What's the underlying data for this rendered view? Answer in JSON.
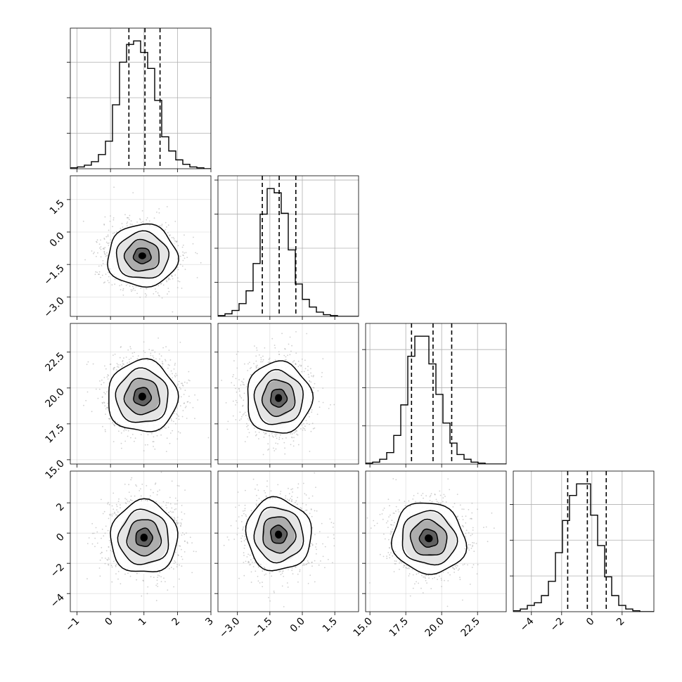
{
  "chart_data": {
    "type": "corner",
    "ndim": 4,
    "grid": true,
    "parameters": [
      {
        "range": [
          -1.2,
          3.0
        ],
        "ticks": [
          -1,
          0,
          1,
          2,
          3
        ],
        "tick_labels": [
          "−1",
          "0",
          "1",
          "2",
          "3"
        ]
      },
      {
        "range": [
          -3.9,
          2.6
        ],
        "ticks": [
          -3.0,
          -1.5,
          0.0,
          1.5
        ],
        "tick_labels": [
          "−3.0",
          "−1.5",
          "0.0",
          "1.5"
        ]
      },
      {
        "range": [
          14.7,
          24.5
        ],
        "ticks": [
          15.0,
          17.5,
          20.0,
          22.5
        ],
        "tick_labels": [
          "15.0",
          "17.5",
          "20.0",
          "22.5"
        ]
      },
      {
        "range": [
          -5.2,
          4.1
        ],
        "ticks": [
          -4,
          -2,
          0,
          2
        ],
        "tick_labels": [
          "−4",
          "−2",
          "0",
          "2"
        ]
      }
    ],
    "quantiles": [
      [
        0.55,
        1.03,
        1.48
      ],
      [
        -1.85,
        -1.07,
        -0.3
      ],
      [
        17.9,
        19.4,
        20.7
      ],
      [
        -1.6,
        -0.3,
        0.95
      ]
    ],
    "histograms": [
      {
        "counts": [
          1,
          2,
          4,
          8,
          16,
          31,
          72,
          120,
          140,
          144,
          131,
          113,
          77,
          36,
          20,
          10,
          5,
          2,
          1,
          0
        ]
      },
      {
        "counts": [
          1,
          3,
          7,
          15,
          30,
          62,
          120,
          150,
          145,
          121,
          78,
          38,
          20,
          11,
          5,
          2,
          1,
          0,
          0,
          0
        ]
      },
      {
        "counts": [
          1,
          2,
          5,
          12,
          30,
          62,
          113,
          134,
          134,
          105,
          73,
          43,
          22,
          10,
          5,
          2,
          1,
          0,
          0,
          0
        ]
      },
      {
        "counts": [
          1,
          3,
          7,
          10,
          18,
          34,
          66,
          102,
          130,
          143,
          143,
          108,
          74,
          39,
          18,
          7,
          3,
          1,
          0,
          0
        ]
      }
    ],
    "pairs": [
      {
        "x": 0,
        "y": 1,
        "mode": [
          0.95,
          -1.1
        ],
        "sigma_x": 0.52,
        "sigma_y": 0.72,
        "rotation_deg": 0
      },
      {
        "x": 0,
        "y": 2,
        "mode": [
          0.95,
          19.4
        ],
        "sigma_x": 0.52,
        "sigma_y": 1.25,
        "rotation_deg": 0
      },
      {
        "x": 1,
        "y": 2,
        "mode": [
          -1.1,
          19.3
        ],
        "sigma_x": 0.75,
        "sigma_y": 1.25,
        "rotation_deg": 0
      },
      {
        "x": 0,
        "y": 3,
        "mode": [
          1.0,
          -0.3
        ],
        "sigma_x": 0.5,
        "sigma_y": 1.2,
        "rotation_deg": 0
      },
      {
        "x": 1,
        "y": 3,
        "mode": [
          -1.1,
          -0.1
        ],
        "sigma_x": 0.75,
        "sigma_y": 1.2,
        "rotation_deg": -10
      },
      {
        "x": 2,
        "y": 3,
        "mode": [
          19.1,
          -0.35
        ],
        "sigma_x": 1.3,
        "sigma_y": 1.15,
        "rotation_deg": 35
      }
    ],
    "contour_levels_sigma": [
      0.5,
      1.0,
      1.5,
      2.0
    ],
    "colors": {
      "line": "#000000",
      "points": "#a8a8a8",
      "grid": "#b0b0b0",
      "density_dark": "#000000"
    }
  }
}
